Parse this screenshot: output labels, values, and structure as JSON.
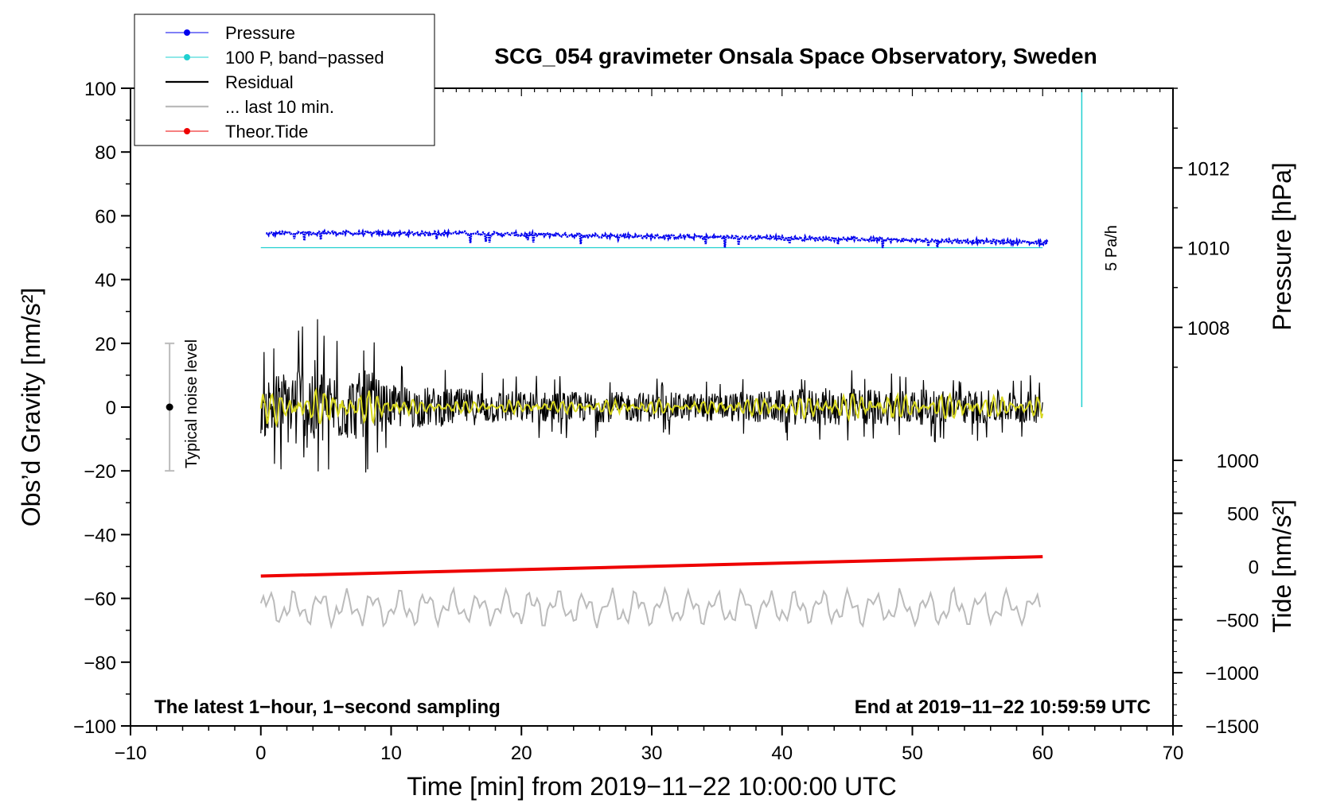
{
  "chart_data": {
    "type": "line",
    "title": "SCG_054 gravimeter Onsala Space Observatory, Sweden",
    "xlabel": "Time [min] from 2019−11−22 10:00:00 UTC",
    "ylabel_left": "Obs’d Gravity [nm/s²]",
    "ylabel_right_pressure": "Pressure [hPa]",
    "ylabel_right_tide": "Tide [nm/s²]",
    "xlim": [
      -10,
      70
    ],
    "ylim_left": [
      -100,
      100
    ],
    "x_ticks": [
      -10,
      0,
      10,
      20,
      30,
      40,
      50,
      60,
      70
    ],
    "x_tick_labels": [
      "−10",
      "0",
      "10",
      "20",
      "30",
      "40",
      "50",
      "60",
      "70"
    ],
    "y_ticks_left": [
      -100,
      -80,
      -60,
      -40,
      -20,
      0,
      20,
      40,
      60,
      80,
      100
    ],
    "y_tick_labels_left": [
      "−100",
      "−80",
      "−60",
      "−40",
      "−20",
      "0",
      "20",
      "40",
      "60",
      "80",
      "100"
    ],
    "pressure_axis": {
      "ticks": [
        1008,
        1010,
        1012
      ],
      "tick_labels": [
        "1008",
        "1010",
        "1012"
      ],
      "gravity_at_ticks": [
        25,
        50,
        75
      ]
    },
    "tide_axis": {
      "ticks": [
        -1500,
        -1000,
        -500,
        0,
        500,
        1000
      ],
      "tick_labels": [
        "−1500",
        "−1000",
        "−500",
        "0",
        "500",
        "1000"
      ],
      "gravity_at_ticks": [
        -100,
        -83.3,
        -66.7,
        -50,
        -33.3,
        -16.7
      ]
    },
    "legend": [
      {
        "label": "Pressure",
        "color": "#0000ee",
        "marker": true
      },
      {
        "label": "100 P, band−passed",
        "color": "#20d0d0",
        "marker": true
      },
      {
        "label": "Residual",
        "color": "#000000",
        "marker": false
      },
      {
        "label": "... last 10 min.",
        "color": "#bbbbbb",
        "marker": false
      },
      {
        "label": "Theor.Tide",
        "color": "#ee0000",
        "marker": true
      }
    ],
    "series": [
      {
        "name": "Pressure",
        "color": "#0000ee",
        "x": [
          0,
          5,
          10,
          15,
          20,
          25,
          30,
          35,
          40,
          45,
          50,
          55,
          60
        ],
        "gravity_units": [
          54.3,
          54.7,
          54.4,
          54.6,
          54.1,
          53.9,
          53.5,
          53.3,
          53.0,
          52.7,
          52.3,
          52.0,
          51.6
        ]
      },
      {
        "name": "100 P, band−passed",
        "color": "#20d0d0",
        "x": [
          0,
          60
        ],
        "gravity_units": [
          50,
          50
        ]
      },
      {
        "name": "Residual",
        "color": "#000000",
        "x_range": [
          0,
          60
        ],
        "center": 0,
        "envelope": [
          [
            0,
            18
          ],
          [
            2,
            24
          ],
          [
            3.5,
            34
          ],
          [
            5,
            24
          ],
          [
            7,
            20
          ],
          [
            8.3,
            24
          ],
          [
            9.5,
            14
          ],
          [
            20,
            10
          ],
          [
            35,
            9
          ],
          [
            43.5,
            12
          ],
          [
            60,
            10
          ]
        ]
      },
      {
        "name": "Residual (yellow, filtered)",
        "color": "#d8d820",
        "x_range": [
          0,
          60
        ],
        "center": 0,
        "envelope": [
          [
            0,
            5
          ],
          [
            8,
            5
          ],
          [
            12,
            2
          ],
          [
            35,
            2
          ],
          [
            45,
            4
          ],
          [
            60,
            3
          ]
        ]
      },
      {
        "name": "Theor.Tide",
        "color": "#ee0000",
        "x": [
          0,
          60
        ],
        "gravity_units": [
          -53,
          -46.9
        ],
        "tide_units": [
          -45,
          47
        ]
      },
      {
        "name": "... last 10 min.",
        "color": "#bbbbbb",
        "x_range": [
          0,
          60
        ],
        "center": -63,
        "amplitude": 5
      }
    ],
    "annotations": {
      "noise_label": "Typical noise level",
      "noise_bar": {
        "x": -7,
        "low": -20,
        "high": 20,
        "center": 0
      },
      "rate_label": "5 Pa/h",
      "rate_bar": {
        "x": 63,
        "low": 0,
        "high": 100
      },
      "footer_left": "The latest 1−hour, 1−second sampling",
      "footer_right": "End at 2019−11−22 10:59:59 UTC"
    }
  }
}
